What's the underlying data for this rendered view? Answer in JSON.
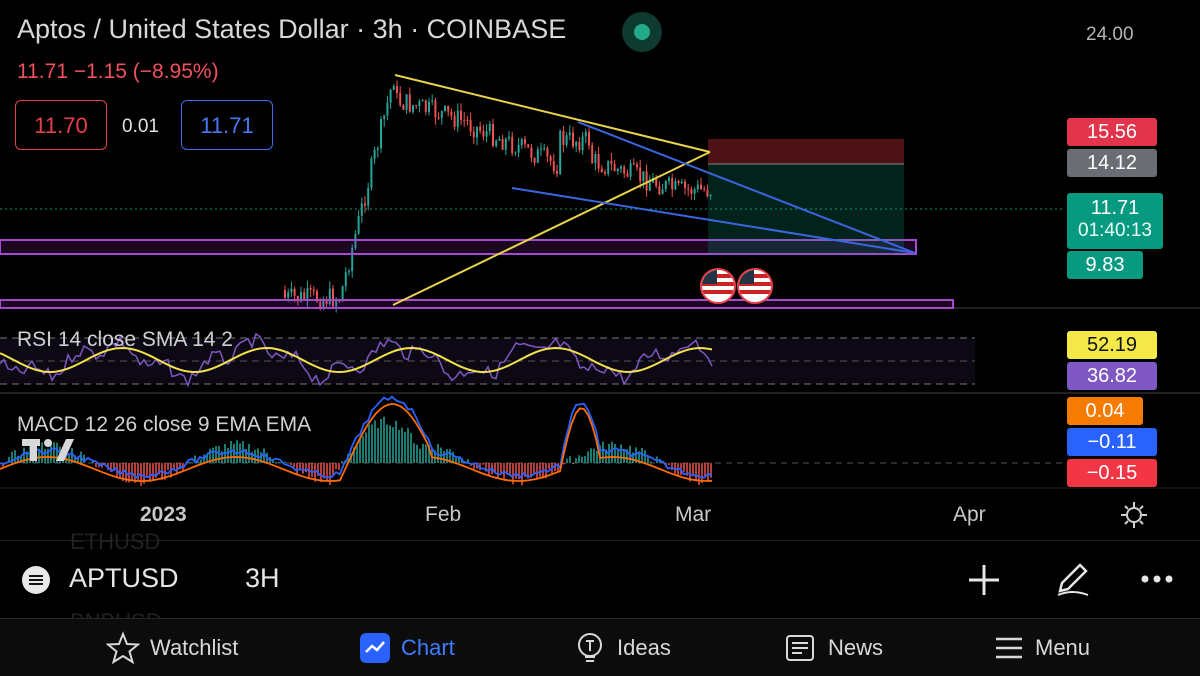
{
  "header": {
    "symbol_title": "Aptos / United States Dollar · 3h · COINBASE",
    "quote": "11.71  −1.15 (−8.95%)",
    "bid": "11.70",
    "spread": "0.01",
    "ask": "11.71"
  },
  "price_axis": {
    "top_label": "24.00"
  },
  "price_tags": {
    "stop": "15.56",
    "entry": "14.12",
    "last_price": "11.71",
    "countdown": "01:40:13",
    "target": "9.83"
  },
  "indicators": {
    "rsi_label": "RSI 14 close SMA 14 2",
    "rsi_value": "52.19",
    "rsi_sma_value": "36.82",
    "macd_label": "MACD 12 26 close 9 EMA EMA",
    "macd_hist": "0.04",
    "macd_line": "−0.11",
    "macd_signal": "−0.15"
  },
  "time_axis": [
    "2023",
    "Feb",
    "Mar",
    "Apr"
  ],
  "toolbar": {
    "symbol": "APTUSD",
    "interval": "3H",
    "ghost_top": "ETHUSD",
    "ghost_bottom": "BNBUSD"
  },
  "tabs": [
    {
      "label": "Watchlist",
      "icon": "star-icon"
    },
    {
      "label": "Chart",
      "icon": "chart-icon"
    },
    {
      "label": "Ideas",
      "icon": "lightbulb-icon"
    },
    {
      "label": "News",
      "icon": "news-icon"
    },
    {
      "label": "Menu",
      "icon": "menu-icon"
    }
  ],
  "colors": {
    "up": "#26a69a",
    "down": "#ef5350",
    "accent": "#2962ff",
    "rsi": "#f2e24b",
    "rsi_sma": "#7e57c2",
    "macd": "#2962ff",
    "signal": "#ff6d00"
  }
}
